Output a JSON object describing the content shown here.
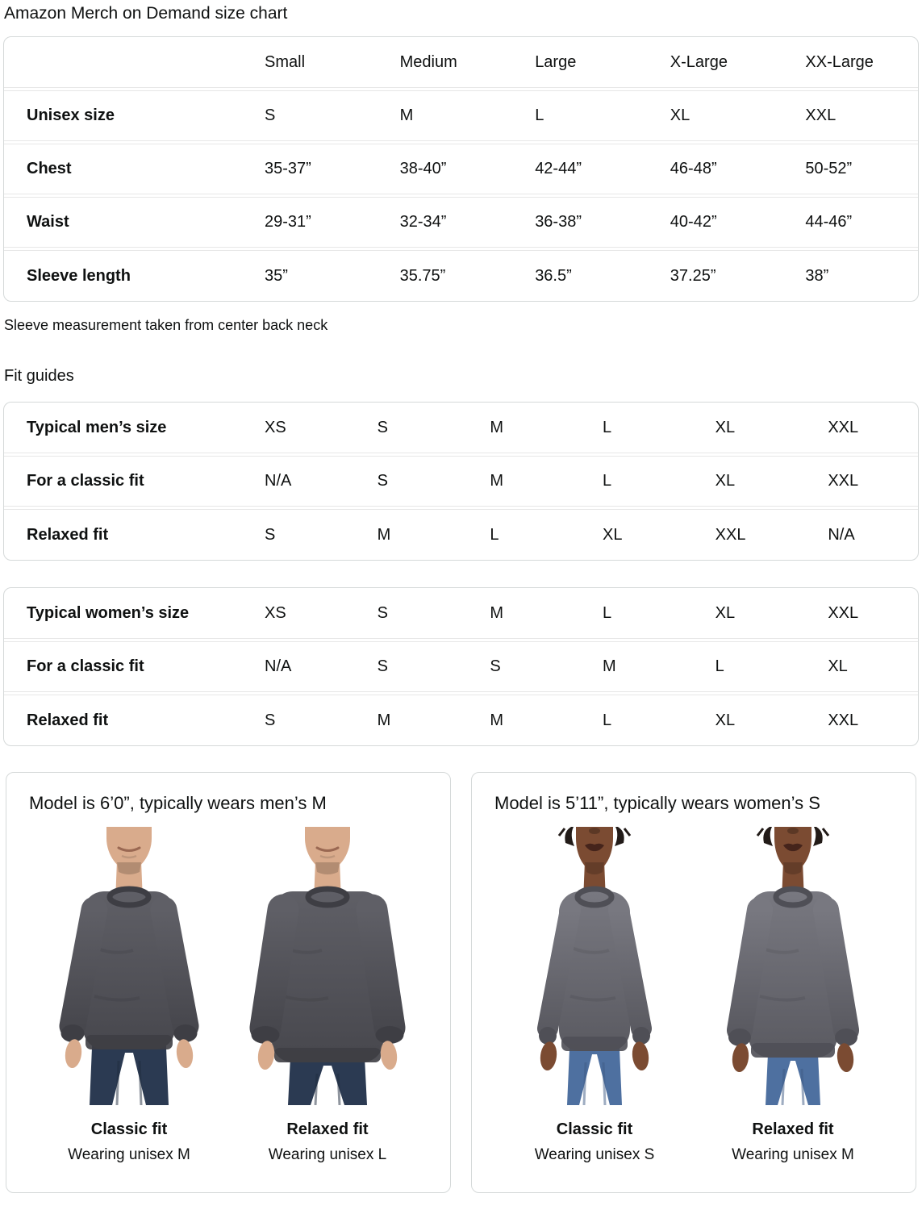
{
  "page": {
    "title": "Amazon Merch on Demand size chart",
    "note": "Sleeve measurement taken from center back neck",
    "fit_guides_heading": "Fit guides"
  },
  "size_table": {
    "columns": [
      "Small",
      "Medium",
      "Large",
      "X-Large",
      "XX-Large"
    ],
    "rows": [
      {
        "label": "Unisex size",
        "values": [
          "S",
          "M",
          "L",
          "XL",
          "XXL"
        ]
      },
      {
        "label": "Chest",
        "values": [
          "35-37”",
          "38-40”",
          "42-44”",
          "46-48”",
          "50-52”"
        ]
      },
      {
        "label": "Waist",
        "values": [
          "29-31”",
          "32-34”",
          "36-38”",
          "40-42”",
          "44-46”"
        ]
      },
      {
        "label": "Sleeve length",
        "values": [
          "35”",
          "35.75”",
          "36.5”",
          "37.25”",
          "38”"
        ]
      }
    ]
  },
  "mens_fit_table": {
    "rows": [
      {
        "label": "Typical men’s size",
        "values": [
          "XS",
          "S",
          "M",
          "L",
          "XL",
          "XXL"
        ]
      },
      {
        "label": "For a classic fit",
        "values": [
          "N/A",
          "S",
          "M",
          "L",
          "XL",
          "XXL"
        ]
      },
      {
        "label": "Relaxed fit",
        "values": [
          "S",
          "M",
          "L",
          "XL",
          "XXL",
          "N/A"
        ]
      }
    ]
  },
  "womens_fit_table": {
    "rows": [
      {
        "label": "Typical women’s size",
        "values": [
          "XS",
          "S",
          "M",
          "L",
          "XL",
          "XXL"
        ]
      },
      {
        "label": "For a classic fit",
        "values": [
          "N/A",
          "S",
          "S",
          "M",
          "L",
          "XL"
        ]
      },
      {
        "label": "Relaxed fit",
        "values": [
          "S",
          "M",
          "M",
          "L",
          "XL",
          "XXL"
        ]
      }
    ]
  },
  "model_cards": [
    {
      "heading": "Model is 6’0”, typically wears men’s M",
      "figures": [
        {
          "variant": "male-classic",
          "fit_label": "Classic fit",
          "wearing": "Wearing unisex M"
        },
        {
          "variant": "male-relaxed",
          "fit_label": "Relaxed fit",
          "wearing": "Wearing unisex L"
        }
      ]
    },
    {
      "heading": "Model is 5’11”, typically wears women’s S",
      "figures": [
        {
          "variant": "female-classic",
          "fit_label": "Classic fit",
          "wearing": "Wearing unisex S"
        },
        {
          "variant": "female-relaxed",
          "fit_label": "Relaxed fit",
          "wearing": "Wearing unisex M"
        }
      ]
    }
  ],
  "colors": {
    "text": "#0f1111",
    "table_border": "#d5d9d9",
    "row_divider": "#e7e7e7",
    "male_skin": "#d9ab8c",
    "female_skin": "#7b4b32",
    "male_sweatshirt": "#4d4d54",
    "female_sweatshirt": "#66666d",
    "male_jeans": "#2b3a52",
    "female_jeans": "#4e70a0",
    "hair": "#221b18"
  }
}
